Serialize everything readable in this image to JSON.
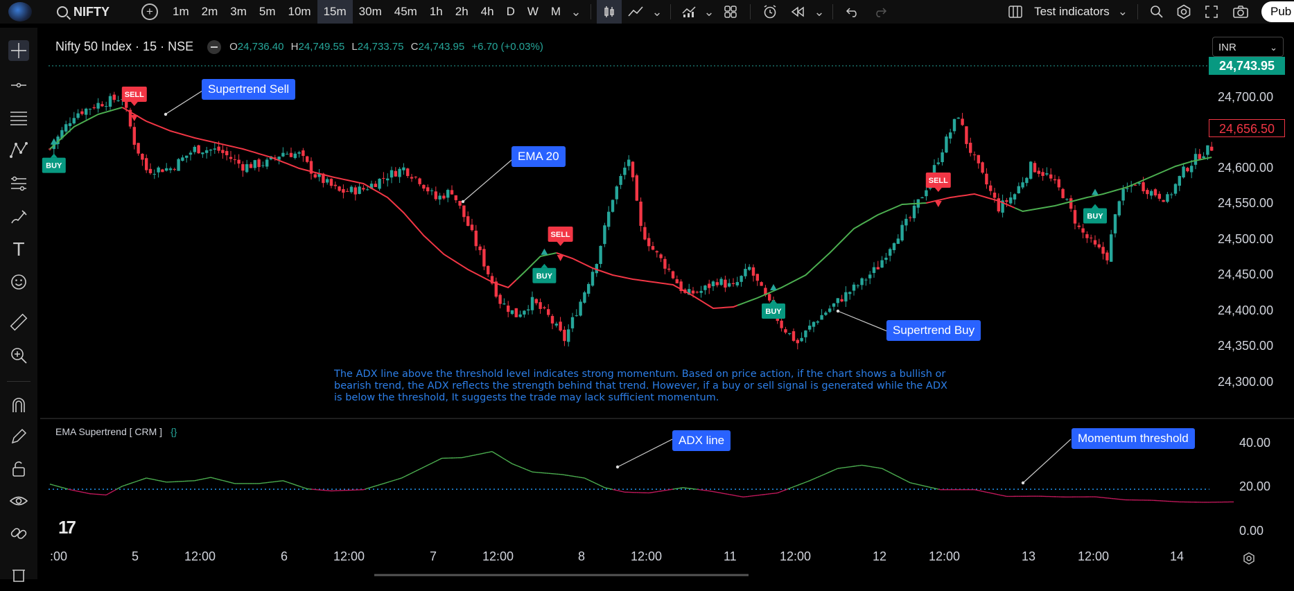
{
  "toolbar": {
    "symbol": "NIFTY",
    "intervals": [
      "1m",
      "2m",
      "3m",
      "5m",
      "10m",
      "15m",
      "30m",
      "45m",
      "1h",
      "2h",
      "4h",
      "D",
      "W",
      "M"
    ],
    "active_interval": "15m",
    "indicators_label": "Test indicators",
    "publish_label": "Pub"
  },
  "header": {
    "title": "Nifty 50 Index · 15 · NSE",
    "o_label": "O",
    "o": "24,736.40",
    "h_label": "H",
    "h": "24,749.55",
    "l_label": "L",
    "l": "24,733.75",
    "c_label": "C",
    "c": "24,743.95",
    "change": "+6.70 (+0.03%)"
  },
  "currency": "INR",
  "price_axis": [
    "24,700.00",
    "24,600.00",
    "24,550.00",
    "24,500.00",
    "24,450.00",
    "24,400.00",
    "24,350.00",
    "24,300.00"
  ],
  "last_price": "24,743.95",
  "marked_price": "24,656.50",
  "indicator_axis": [
    "40.00",
    "20.00",
    "0.00"
  ],
  "time_axis": [
    ":00",
    "5",
    "12:00",
    "6",
    "12:00",
    "7",
    "12:00",
    "8",
    "12:00",
    "11",
    "12:00",
    "12",
    "12:00",
    "13",
    "12:00",
    "14"
  ],
  "callouts": {
    "supertrend_sell": "Supertrend  Sell",
    "ema20": "EMA 20",
    "supertrend_buy": "Supertrend Buy",
    "adx_line": "ADX line",
    "momentum_threshold": "Momentum threshold"
  },
  "signals": {
    "buy": "BUY",
    "sell": "SELL"
  },
  "note": "The ADX line above the threshold level indicates strong momentum. Based on price action, if the chart shows a bullish or bearish trend, the ADX reflects the strength behind that trend. However, if a buy or sell signal is generated while the ADX is below the threshold, It suggests the trade may lack sufficient momentum.",
  "indicator_name": "EMA Supertrend [ CRM ]",
  "indicator_braces": "{}",
  "colors": {
    "up": "#26a69a",
    "down": "#f23645",
    "ema_up": "#4caf50",
    "ema_down": "#f23645",
    "callout": "#2962ff",
    "threshold": "#2196f3"
  },
  "chart_data": {
    "type": "candlestick",
    "price_ylim": [
      24280,
      24760
    ],
    "adx_ylim": [
      0,
      52
    ],
    "adx_threshold": 20,
    "ema_anchor": [
      [
        0,
        24640
      ],
      [
        6,
        24672
      ],
      [
        12,
        24690
      ],
      [
        18,
        24700
      ],
      [
        24,
        24680
      ],
      [
        30,
        24666
      ],
      [
        36,
        24656
      ],
      [
        42,
        24648
      ],
      [
        48,
        24640
      ],
      [
        55,
        24628
      ],
      [
        62,
        24612
      ],
      [
        70,
        24600
      ],
      [
        78,
        24590
      ],
      [
        84,
        24570
      ],
      [
        88,
        24548
      ],
      [
        93,
        24515
      ],
      [
        98,
        24488
      ],
      [
        104,
        24466
      ],
      [
        110,
        24448
      ],
      [
        114,
        24440
      ],
      [
        118,
        24462
      ],
      [
        122,
        24485
      ],
      [
        126,
        24490
      ],
      [
        130,
        24482
      ],
      [
        135,
        24468
      ],
      [
        140,
        24458
      ],
      [
        145,
        24452
      ],
      [
        150,
        24448
      ],
      [
        155,
        24444
      ],
      [
        160,
        24428
      ],
      [
        165,
        24410
      ],
      [
        170,
        24412
      ],
      [
        176,
        24425
      ],
      [
        182,
        24440
      ],
      [
        188,
        24458
      ],
      [
        194,
        24490
      ],
      [
        200,
        24525
      ],
      [
        206,
        24545
      ],
      [
        212,
        24560
      ],
      [
        218,
        24562
      ],
      [
        224,
        24570
      ],
      [
        230,
        24575
      ],
      [
        236,
        24565
      ],
      [
        242,
        24550
      ],
      [
        250,
        24558
      ],
      [
        258,
        24570
      ],
      [
        262,
        24575
      ],
      [
        268,
        24585
      ],
      [
        274,
        24600
      ],
      [
        280,
        24615
      ],
      [
        284,
        24622
      ],
      [
        289,
        24628
      ]
    ],
    "ema_trend_segments": [
      [
        0,
        18,
        "up"
      ],
      [
        18,
        116,
        "down"
      ],
      [
        116,
        126,
        "up"
      ],
      [
        126,
        171,
        "down"
      ],
      [
        171,
        218,
        "up"
      ],
      [
        218,
        240,
        "down"
      ],
      [
        240,
        289,
        "up"
      ]
    ],
    "close_anchor": [
      [
        0,
        24640
      ],
      [
        6,
        24690
      ],
      [
        12,
        24705
      ],
      [
        18,
        24715
      ],
      [
        21,
        24650
      ],
      [
        24,
        24610
      ],
      [
        30,
        24612
      ],
      [
        36,
        24640
      ],
      [
        42,
        24638
      ],
      [
        48,
        24615
      ],
      [
        54,
        24620
      ],
      [
        58,
        24635
      ],
      [
        62,
        24632
      ],
      [
        66,
        24602
      ],
      [
        72,
        24578
      ],
      [
        78,
        24582
      ],
      [
        84,
        24602
      ],
      [
        88,
        24612
      ],
      [
        92,
        24595
      ],
      [
        96,
        24568
      ],
      [
        100,
        24580
      ],
      [
        104,
        24530
      ],
      [
        108,
        24475
      ],
      [
        112,
        24420
      ],
      [
        116,
        24400
      ],
      [
        120,
        24420
      ],
      [
        124,
        24398
      ],
      [
        128,
        24365
      ],
      [
        132,
        24420
      ],
      [
        136,
        24480
      ],
      [
        140,
        24570
      ],
      [
        144,
        24626
      ],
      [
        147,
        24525
      ],
      [
        150,
        24495
      ],
      [
        154,
        24465
      ],
      [
        158,
        24430
      ],
      [
        162,
        24435
      ],
      [
        166,
        24450
      ],
      [
        170,
        24440
      ],
      [
        174,
        24468
      ],
      [
        178,
        24425
      ],
      [
        182,
        24385
      ],
      [
        186,
        24360
      ],
      [
        190,
        24390
      ],
      [
        194,
        24410
      ],
      [
        198,
        24430
      ],
      [
        202,
        24448
      ],
      [
        206,
        24470
      ],
      [
        210,
        24510
      ],
      [
        214,
        24540
      ],
      [
        218,
        24585
      ],
      [
        222,
        24640
      ],
      [
        226,
        24690
      ],
      [
        228,
        24650
      ],
      [
        232,
        24600
      ],
      [
        236,
        24555
      ],
      [
        240,
        24575
      ],
      [
        244,
        24615
      ],
      [
        248,
        24602
      ],
      [
        252,
        24575
      ],
      [
        256,
        24525
      ],
      [
        260,
        24498
      ],
      [
        263,
        24485
      ],
      [
        266,
        24570
      ],
      [
        270,
        24592
      ],
      [
        274,
        24578
      ],
      [
        278,
        24568
      ],
      [
        282,
        24608
      ],
      [
        286,
        24632
      ],
      [
        289,
        24642
      ]
    ],
    "signals": [
      {
        "type": "BUY",
        "bar": 1
      },
      {
        "type": "SELL",
        "bar": 21
      },
      {
        "type": "BUY",
        "bar": 123
      },
      {
        "type": "SELL",
        "bar": 127
      },
      {
        "type": "BUY",
        "bar": 180
      },
      {
        "type": "SELL",
        "bar": 221
      },
      {
        "type": "BUY",
        "bar": 260
      }
    ],
    "adx_anchor": [
      [
        0,
        22.5
      ],
      [
        10,
        19.8
      ],
      [
        20,
        17.8
      ],
      [
        28,
        17.2
      ],
      [
        36,
        21.5
      ],
      [
        48,
        25.5
      ],
      [
        58,
        23.5
      ],
      [
        72,
        24.2
      ],
      [
        80,
        25.8
      ],
      [
        92,
        22.8
      ],
      [
        104,
        22.8
      ],
      [
        116,
        24.2
      ],
      [
        128,
        20.2
      ],
      [
        140,
        19.2
      ],
      [
        156,
        19.8
      ],
      [
        175,
        25.5
      ],
      [
        195,
        35.2
      ],
      [
        205,
        35.5
      ],
      [
        220,
        38.5
      ],
      [
        230,
        32.5
      ],
      [
        240,
        28.5
      ],
      [
        255,
        27.2
      ],
      [
        266,
        25.5
      ],
      [
        276,
        20.8
      ],
      [
        286,
        18.6
      ],
      [
        298,
        18.2
      ],
      [
        315,
        20.8
      ],
      [
        328,
        19.2
      ],
      [
        345,
        16.2
      ],
      [
        362,
        18.2
      ],
      [
        378,
        24.2
      ],
      [
        392,
        30.2
      ],
      [
        404,
        31.8
      ],
      [
        414,
        30.2
      ],
      [
        428,
        23.2
      ],
      [
        443,
        19.8
      ],
      [
        460,
        19.8
      ],
      [
        476,
        16.5
      ],
      [
        492,
        16.6
      ],
      [
        505,
        16.2
      ],
      [
        520,
        16.3
      ],
      [
        535,
        14.8
      ],
      [
        548,
        14.6
      ],
      [
        562,
        13.8
      ],
      [
        575,
        13.6
      ],
      [
        589,
        13.8
      ]
    ]
  }
}
